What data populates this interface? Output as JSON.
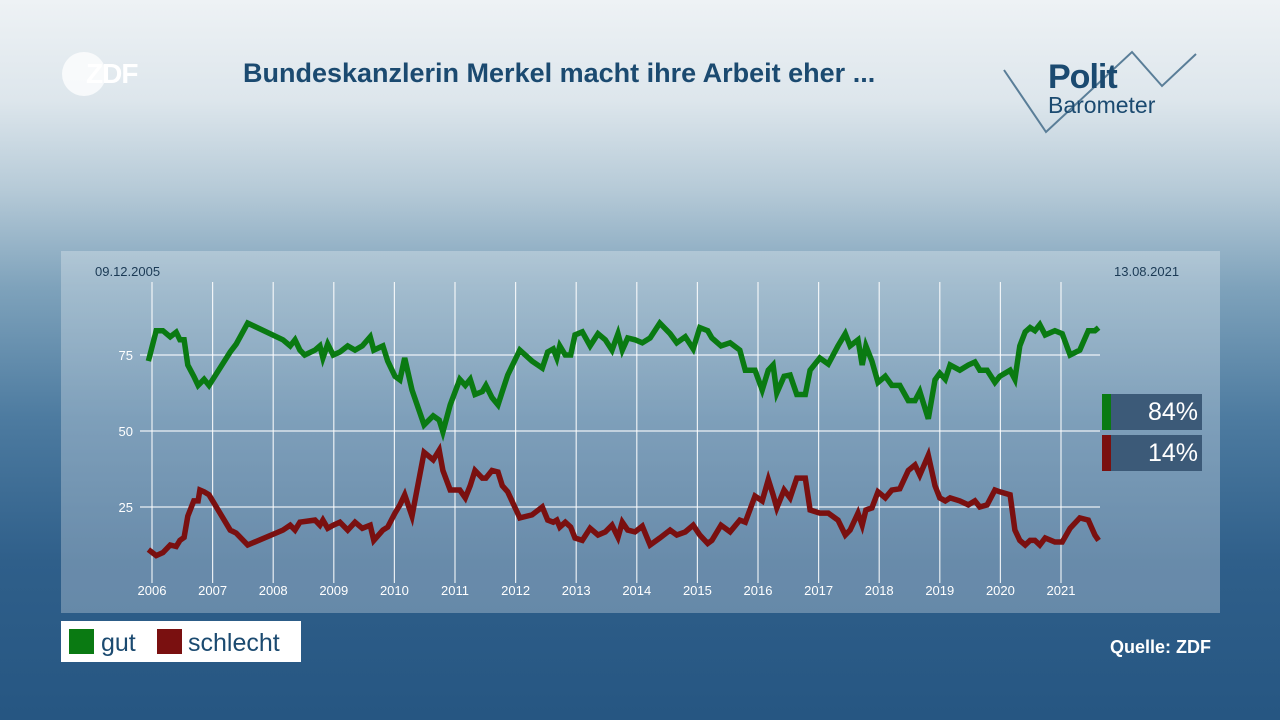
{
  "header": {
    "logo": "ZDF",
    "title": "Bundeskanzlerin Merkel macht ihre Arbeit eher ...",
    "brand_logo_line1": "Polit",
    "brand_logo_line2": "Barometer"
  },
  "source": "Quelle: ZDF",
  "chart_data": {
    "type": "line",
    "title": "Bundeskanzlerin Merkel macht ihre Arbeit eher ...",
    "start_label": "09.12.2005",
    "end_label": "13.08.2021",
    "xlim": [
      2005.94,
      2021.62
    ],
    "ylim": [
      0,
      100
    ],
    "yticks": [
      25,
      50,
      75
    ],
    "xticks": [
      "2006",
      "2007",
      "2008",
      "2009",
      "2010",
      "2011",
      "2012",
      "2013",
      "2014",
      "2015",
      "2016",
      "2017",
      "2018",
      "2019",
      "2020",
      "2021"
    ],
    "grid": true,
    "legend_position": "bottom-left",
    "series": [
      {
        "name": "gut",
        "color": "#0a7a12",
        "end_value": "84%",
        "points": [
          [
            2005.94,
            73
          ],
          [
            2006.07,
            83
          ],
          [
            2006.18,
            83
          ],
          [
            2006.3,
            81
          ],
          [
            2006.4,
            82.5
          ],
          [
            2006.46,
            80
          ],
          [
            2006.53,
            80
          ],
          [
            2006.59,
            71.7
          ],
          [
            2006.69,
            68
          ],
          [
            2006.76,
            65
          ],
          [
            2006.86,
            67
          ],
          [
            2006.94,
            65
          ],
          [
            2007.29,
            76
          ],
          [
            2007.39,
            78.6
          ],
          [
            2007.58,
            85.5
          ],
          [
            2008.16,
            80
          ],
          [
            2008.28,
            78
          ],
          [
            2008.36,
            80
          ],
          [
            2008.44,
            76.6
          ],
          [
            2008.52,
            75
          ],
          [
            2008.69,
            76.6
          ],
          [
            2008.77,
            78
          ],
          [
            2008.82,
            74
          ],
          [
            2008.9,
            78.6
          ],
          [
            2008.99,
            75
          ],
          [
            2009.1,
            76
          ],
          [
            2009.23,
            78
          ],
          [
            2009.35,
            76.6
          ],
          [
            2009.47,
            78
          ],
          [
            2009.6,
            81
          ],
          [
            2009.66,
            76.6
          ],
          [
            2009.81,
            78
          ],
          [
            2009.89,
            73
          ],
          [
            2010.01,
            68
          ],
          [
            2010.09,
            66.8
          ],
          [
            2010.17,
            74
          ],
          [
            2010.29,
            63.5
          ],
          [
            2010.49,
            52
          ],
          [
            2010.64,
            55
          ],
          [
            2010.74,
            53.6
          ],
          [
            2010.8,
            49.7
          ],
          [
            2010.92,
            58.6
          ],
          [
            2011.08,
            67
          ],
          [
            2011.17,
            65
          ],
          [
            2011.25,
            67
          ],
          [
            2011.33,
            62
          ],
          [
            2011.45,
            63
          ],
          [
            2011.51,
            65
          ],
          [
            2011.61,
            61
          ],
          [
            2011.71,
            58.6
          ],
          [
            2011.78,
            63
          ],
          [
            2011.87,
            68.4
          ],
          [
            2012.07,
            76.6
          ],
          [
            2012.27,
            73
          ],
          [
            2012.44,
            70.7
          ],
          [
            2012.53,
            76
          ],
          [
            2012.62,
            77
          ],
          [
            2012.68,
            74
          ],
          [
            2012.73,
            78
          ],
          [
            2012.82,
            75
          ],
          [
            2012.91,
            75
          ],
          [
            2012.98,
            81.6
          ],
          [
            2013.1,
            82.6
          ],
          [
            2013.23,
            78
          ],
          [
            2013.36,
            82
          ],
          [
            2013.48,
            80
          ],
          [
            2013.59,
            76.6
          ],
          [
            2013.69,
            82
          ],
          [
            2013.76,
            76.6
          ],
          [
            2013.85,
            80.6
          ],
          [
            2013.97,
            80
          ],
          [
            2014.09,
            79
          ],
          [
            2014.22,
            80.6
          ],
          [
            2014.38,
            85.5
          ],
          [
            2014.55,
            82
          ],
          [
            2014.66,
            79
          ],
          [
            2014.8,
            81
          ],
          [
            2014.93,
            77
          ],
          [
            2015.04,
            84
          ],
          [
            2015.17,
            83
          ],
          [
            2015.24,
            80.6
          ],
          [
            2015.39,
            78
          ],
          [
            2015.54,
            79
          ],
          [
            2015.7,
            76.6
          ],
          [
            2015.79,
            70
          ],
          [
            2015.95,
            70
          ],
          [
            2016.07,
            63.5
          ],
          [
            2016.17,
            70
          ],
          [
            2016.25,
            71.7
          ],
          [
            2016.31,
            62.5
          ],
          [
            2016.43,
            68
          ],
          [
            2016.53,
            68.4
          ],
          [
            2016.64,
            62
          ],
          [
            2016.78,
            62
          ],
          [
            2016.86,
            70
          ],
          [
            2017.02,
            74
          ],
          [
            2017.16,
            72
          ],
          [
            2017.32,
            78
          ],
          [
            2017.44,
            82
          ],
          [
            2017.52,
            78
          ],
          [
            2017.65,
            80
          ],
          [
            2017.72,
            71.7
          ],
          [
            2017.78,
            78
          ],
          [
            2017.88,
            73
          ],
          [
            2017.98,
            66
          ],
          [
            2018.1,
            68
          ],
          [
            2018.21,
            65
          ],
          [
            2018.34,
            65
          ],
          [
            2018.48,
            60
          ],
          [
            2018.59,
            60
          ],
          [
            2018.67,
            63
          ],
          [
            2018.81,
            54
          ],
          [
            2018.92,
            66.8
          ],
          [
            2019.0,
            69
          ],
          [
            2019.09,
            67
          ],
          [
            2019.17,
            71.7
          ],
          [
            2019.33,
            70
          ],
          [
            2019.47,
            71.7
          ],
          [
            2019.58,
            72.7
          ],
          [
            2019.66,
            70
          ],
          [
            2019.78,
            70
          ],
          [
            2019.91,
            66
          ],
          [
            2019.99,
            68
          ],
          [
            2020.16,
            70
          ],
          [
            2020.24,
            67
          ],
          [
            2020.32,
            78
          ],
          [
            2020.41,
            82.6
          ],
          [
            2020.49,
            84
          ],
          [
            2020.57,
            83
          ],
          [
            2020.65,
            85
          ],
          [
            2020.74,
            81.6
          ],
          [
            2020.9,
            83
          ],
          [
            2021.02,
            82
          ],
          [
            2021.15,
            75
          ],
          [
            2021.31,
            76.6
          ],
          [
            2021.45,
            83
          ],
          [
            2021.56,
            83
          ],
          [
            2021.62,
            84
          ]
        ]
      },
      {
        "name": "schlecht",
        "color": "#7a1010",
        "end_value": "14%",
        "points": [
          [
            2005.94,
            11
          ],
          [
            2006.07,
            9
          ],
          [
            2006.18,
            10
          ],
          [
            2006.3,
            12.5
          ],
          [
            2006.4,
            12
          ],
          [
            2006.46,
            14
          ],
          [
            2006.53,
            15
          ],
          [
            2006.59,
            22
          ],
          [
            2006.69,
            27
          ],
          [
            2006.76,
            27
          ],
          [
            2006.79,
            30.6
          ],
          [
            2006.86,
            30
          ],
          [
            2006.94,
            29
          ],
          [
            2007.29,
            17.4
          ],
          [
            2007.39,
            16.4
          ],
          [
            2007.58,
            12.5
          ],
          [
            2008.16,
            17.4
          ],
          [
            2008.28,
            19
          ],
          [
            2008.36,
            17.4
          ],
          [
            2008.44,
            20
          ],
          [
            2008.69,
            20.7
          ],
          [
            2008.77,
            19
          ],
          [
            2008.82,
            20.7
          ],
          [
            2008.9,
            18
          ],
          [
            2008.99,
            19
          ],
          [
            2009.1,
            20
          ],
          [
            2009.23,
            17.4
          ],
          [
            2009.35,
            20
          ],
          [
            2009.47,
            18
          ],
          [
            2009.6,
            19
          ],
          [
            2009.66,
            14
          ],
          [
            2009.81,
            17.4
          ],
          [
            2009.89,
            18.4
          ],
          [
            2010.01,
            23
          ],
          [
            2010.09,
            25.7
          ],
          [
            2010.17,
            29
          ],
          [
            2010.29,
            22
          ],
          [
            2010.49,
            43
          ],
          [
            2010.64,
            40.5
          ],
          [
            2010.74,
            43.7
          ],
          [
            2010.8,
            37
          ],
          [
            2010.92,
            30.6
          ],
          [
            2011.08,
            30.6
          ],
          [
            2011.17,
            28
          ],
          [
            2011.25,
            32
          ],
          [
            2011.33,
            37
          ],
          [
            2011.45,
            34.5
          ],
          [
            2011.51,
            34.5
          ],
          [
            2011.61,
            37
          ],
          [
            2011.71,
            36.5
          ],
          [
            2011.78,
            32
          ],
          [
            2011.87,
            30
          ],
          [
            2012.07,
            21.4
          ],
          [
            2012.27,
            22.4
          ],
          [
            2012.44,
            25
          ],
          [
            2012.53,
            20.7
          ],
          [
            2012.62,
            20
          ],
          [
            2012.68,
            20.7
          ],
          [
            2012.73,
            18.4
          ],
          [
            2012.82,
            20
          ],
          [
            2012.91,
            18.4
          ],
          [
            2012.98,
            14.8
          ],
          [
            2013.1,
            14
          ],
          [
            2013.23,
            18
          ],
          [
            2013.36,
            15.8
          ],
          [
            2013.48,
            16.8
          ],
          [
            2013.59,
            19
          ],
          [
            2013.69,
            15
          ],
          [
            2013.76,
            20
          ],
          [
            2013.85,
            17.4
          ],
          [
            2013.97,
            16.8
          ],
          [
            2014.09,
            18.7
          ],
          [
            2014.22,
            12.5
          ],
          [
            2014.38,
            14.8
          ],
          [
            2014.55,
            17.4
          ],
          [
            2014.66,
            15.8
          ],
          [
            2014.8,
            16.8
          ],
          [
            2014.93,
            19
          ],
          [
            2015.04,
            15.8
          ],
          [
            2015.17,
            13
          ],
          [
            2015.24,
            14
          ],
          [
            2015.39,
            19
          ],
          [
            2015.54,
            16.8
          ],
          [
            2015.7,
            20.7
          ],
          [
            2015.79,
            20
          ],
          [
            2015.95,
            28.6
          ],
          [
            2016.07,
            27
          ],
          [
            2016.17,
            34
          ],
          [
            2016.25,
            29
          ],
          [
            2016.31,
            24.7
          ],
          [
            2016.43,
            30.6
          ],
          [
            2016.53,
            28
          ],
          [
            2016.64,
            34.5
          ],
          [
            2016.78,
            34.5
          ],
          [
            2016.86,
            24
          ],
          [
            2017.02,
            23
          ],
          [
            2017.16,
            23
          ],
          [
            2017.32,
            20.7
          ],
          [
            2017.44,
            15.8
          ],
          [
            2017.52,
            17.4
          ],
          [
            2017.65,
            23
          ],
          [
            2017.72,
            19
          ],
          [
            2017.78,
            24
          ],
          [
            2017.88,
            24.7
          ],
          [
            2017.98,
            30
          ],
          [
            2018.1,
            28
          ],
          [
            2018.21,
            30.6
          ],
          [
            2018.34,
            31
          ],
          [
            2018.48,
            37
          ],
          [
            2018.59,
            38.8
          ],
          [
            2018.67,
            35.5
          ],
          [
            2018.81,
            42
          ],
          [
            2018.92,
            32
          ],
          [
            2019.0,
            28
          ],
          [
            2019.09,
            27
          ],
          [
            2019.17,
            28
          ],
          [
            2019.33,
            27
          ],
          [
            2019.47,
            25.7
          ],
          [
            2019.58,
            27
          ],
          [
            2019.66,
            25
          ],
          [
            2019.78,
            25.7
          ],
          [
            2019.91,
            30.6
          ],
          [
            2019.99,
            30
          ],
          [
            2020.16,
            29
          ],
          [
            2020.24,
            17.4
          ],
          [
            2020.32,
            14
          ],
          [
            2020.41,
            12.5
          ],
          [
            2020.49,
            14
          ],
          [
            2020.57,
            14
          ],
          [
            2020.65,
            12.5
          ],
          [
            2020.74,
            14.8
          ],
          [
            2020.9,
            13.5
          ],
          [
            2021.02,
            13.5
          ],
          [
            2021.15,
            18
          ],
          [
            2021.31,
            21.4
          ],
          [
            2021.45,
            20.7
          ],
          [
            2021.56,
            15.8
          ],
          [
            2021.62,
            14
          ]
        ]
      }
    ]
  }
}
